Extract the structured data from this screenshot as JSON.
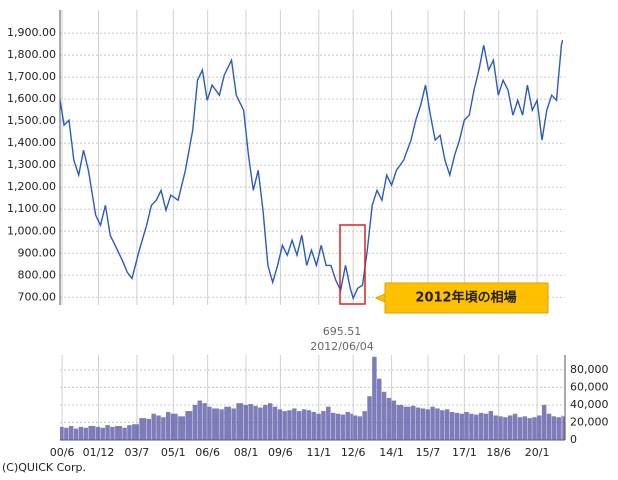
{
  "chart_data": [
    {
      "type": "line",
      "x": [
        2000.33,
        2000.5,
        2000.7,
        2000.9,
        2001.1,
        2001.3,
        2001.5,
        2001.8,
        2002.0,
        2002.2,
        2002.4,
        2002.6,
        2002.9,
        2003.1,
        2003.3,
        2003.6,
        2003.9,
        2004.1,
        2004.3,
        2004.5,
        2004.7,
        2004.9,
        2005.2,
        2005.5,
        2005.8,
        2006.0,
        2006.2,
        2006.4,
        2006.6,
        2006.9,
        2007.1,
        2007.4,
        2007.6,
        2007.9,
        2008.1,
        2008.3,
        2008.5,
        2008.7,
        2008.9,
        2009.1,
        2009.3,
        2009.5,
        2009.7,
        2009.9,
        2010.1,
        2010.3,
        2010.5,
        2010.7,
        2010.9,
        2011.1,
        2011.3,
        2011.5,
        2011.7,
        2011.9,
        2012.1,
        2012.3,
        2012.42,
        2012.6,
        2012.8,
        2013.0,
        2013.2,
        2013.4,
        2013.6,
        2013.8,
        2014.0,
        2014.2,
        2014.5,
        2014.8,
        2015.0,
        2015.2,
        2015.4,
        2015.6,
        2015.8,
        2016.0,
        2016.2,
        2016.4,
        2016.6,
        2016.8,
        2017.0,
        2017.2,
        2017.4,
        2017.6,
        2017.8,
        2018.0,
        2018.2,
        2018.4,
        2018.6,
        2018.8,
        2019.0,
        2019.2,
        2019.4,
        2019.6,
        2019.8,
        2020.0,
        2020.2,
        2020.4,
        2020.6,
        2020.8,
        2021.0,
        2021.05
      ],
      "values": [
        1595,
        1482,
        1505,
        1323,
        1255,
        1368,
        1277,
        1073,
        1027,
        1118,
        982,
        936,
        868,
        814,
        786,
        914,
        1027,
        1118,
        1141,
        1186,
        1095,
        1164,
        1141,
        1277,
        1459,
        1686,
        1732,
        1595,
        1664,
        1618,
        1709,
        1777,
        1618,
        1550,
        1345,
        1186,
        1277,
        1095,
        845,
        768,
        845,
        936,
        891,
        959,
        891,
        982,
        845,
        914,
        845,
        936,
        845,
        845,
        777,
        732,
        845,
        741,
        695.51,
        741,
        755,
        914,
        1118,
        1186,
        1141,
        1255,
        1209,
        1277,
        1323,
        1414,
        1505,
        1573,
        1664,
        1527,
        1414,
        1436,
        1323,
        1255,
        1345,
        1414,
        1505,
        1527,
        1641,
        1732,
        1845,
        1732,
        1777,
        1618,
        1686,
        1641,
        1527,
        1595,
        1527,
        1664,
        1550,
        1595,
        1414,
        1550,
        1618,
        1595,
        1845,
        1868
      ],
      "color": "#2a5cb8",
      "xlim": [
        2000.33,
        2021.15
      ],
      "ylim": [
        665,
        2005
      ],
      "yticks": [
        {
          "value": 700,
          "label": "700.00"
        },
        {
          "value": 800,
          "label": "800.00"
        },
        {
          "value": 900,
          "label": "900.00"
        },
        {
          "value": 1000,
          "label": "1,000.00"
        },
        {
          "value": 1100,
          "label": "1,100.00"
        },
        {
          "value": 1200,
          "label": "1,200.00"
        },
        {
          "value": 1300,
          "label": "1,300.00"
        },
        {
          "value": 1400,
          "label": "1,400.00"
        },
        {
          "value": 1500,
          "label": "1,500.00"
        },
        {
          "value": 1600,
          "label": "1,600.00"
        },
        {
          "value": 1700,
          "label": "1,700.00"
        },
        {
          "value": 1800,
          "label": "1,800.00"
        },
        {
          "value": 1900,
          "label": "1,900.00"
        }
      ],
      "annotations": [
        "695.51",
        "2012/06/04",
        "2012年頃の相場"
      ]
    },
    {
      "type": "bar",
      "x": [
        2000.33,
        2000.5,
        2000.7,
        2000.9,
        2001.1,
        2001.3,
        2001.5,
        2001.8,
        2002.0,
        2002.2,
        2002.4,
        2002.6,
        2002.9,
        2003.1,
        2003.3,
        2003.6,
        2003.9,
        2004.1,
        2004.3,
        2004.5,
        2004.7,
        2004.9,
        2005.2,
        2005.5,
        2005.8,
        2006.0,
        2006.2,
        2006.4,
        2006.6,
        2006.9,
        2007.1,
        2007.4,
        2007.6,
        2007.9,
        2008.1,
        2008.3,
        2008.5,
        2008.7,
        2008.9,
        2009.1,
        2009.3,
        2009.5,
        2009.7,
        2009.9,
        2010.1,
        2010.3,
        2010.5,
        2010.7,
        2010.9,
        2011.1,
        2011.3,
        2011.5,
        2011.7,
        2011.9,
        2012.1,
        2012.3,
        2012.42,
        2012.6,
        2012.8,
        2013.0,
        2013.2,
        2013.4,
        2013.6,
        2013.8,
        2014.0,
        2014.2,
        2014.5,
        2014.8,
        2015.0,
        2015.2,
        2015.4,
        2015.6,
        2015.8,
        2016.0,
        2016.2,
        2016.4,
        2016.6,
        2016.8,
        2017.0,
        2017.2,
        2017.4,
        2017.6,
        2017.8,
        2018.0,
        2018.2,
        2018.4,
        2018.6,
        2018.8,
        2019.0,
        2019.2,
        2019.4,
        2019.6,
        2019.8,
        2020.0,
        2020.2,
        2020.4,
        2020.6,
        2020.8,
        2021.0,
        2021.05
      ],
      "values": [
        15000,
        14000,
        16000,
        13000,
        15000,
        14000,
        16000,
        15000,
        14000,
        17000,
        15000,
        16000,
        14000,
        17000,
        18000,
        25000,
        24000,
        30000,
        28000,
        26000,
        32000,
        30000,
        27000,
        33000,
        40000,
        45000,
        42000,
        38000,
        36000,
        35000,
        38000,
        36000,
        42000,
        40000,
        41000,
        39000,
        37000,
        40000,
        42000,
        38000,
        35000,
        33000,
        34000,
        36000,
        33000,
        35000,
        34000,
        32000,
        30000,
        33000,
        38000,
        31000,
        30000,
        29000,
        32000,
        30000,
        28000,
        27000,
        33000,
        50000,
        95000,
        70000,
        55000,
        48000,
        45000,
        40000,
        38000,
        39000,
        37000,
        36000,
        35000,
        38000,
        36000,
        34000,
        35000,
        32000,
        31000,
        30000,
        32000,
        30000,
        29000,
        31000,
        30000,
        33000,
        28000,
        27000,
        26000,
        28000,
        30000,
        26000,
        27000,
        25000,
        26000,
        28000,
        40000,
        30000,
        27000,
        26000,
        28000,
        27000
      ],
      "color": "#5c5ca8",
      "xlim": [
        2000.33,
        2021.15
      ],
      "xticks": [
        {
          "value": 2000.417,
          "label": "00/6"
        },
        {
          "value": 2001.917,
          "label": "01/12"
        },
        {
          "value": 2003.5,
          "label": "03/7"
        },
        {
          "value": 2005.0,
          "label": "05/1"
        },
        {
          "value": 2006.417,
          "label": "06/6"
        },
        {
          "value": 2008.0,
          "label": "08/1"
        },
        {
          "value": 2009.417,
          "label": "09/6"
        },
        {
          "value": 2011.0,
          "label": "11/1"
        },
        {
          "value": 2012.417,
          "label": "12/6"
        },
        {
          "value": 2014.0,
          "label": "14/1"
        },
        {
          "value": 2015.5,
          "label": "15/7"
        },
        {
          "value": 2017.0,
          "label": "17/1"
        },
        {
          "value": 2018.417,
          "label": "18/6"
        },
        {
          "value": 2020.0,
          "label": "20/1"
        }
      ],
      "ylim": [
        0,
        97000
      ],
      "yticks": [
        0,
        {
          "value": 20000,
          "label": "20,000"
        },
        {
          "value": 40000,
          "label": "40,000"
        },
        {
          "value": 60000,
          "label": "60,000"
        },
        {
          "value": 80000,
          "label": "80,000"
        }
      ]
    }
  ],
  "credit": "(C)QUICK Corp."
}
